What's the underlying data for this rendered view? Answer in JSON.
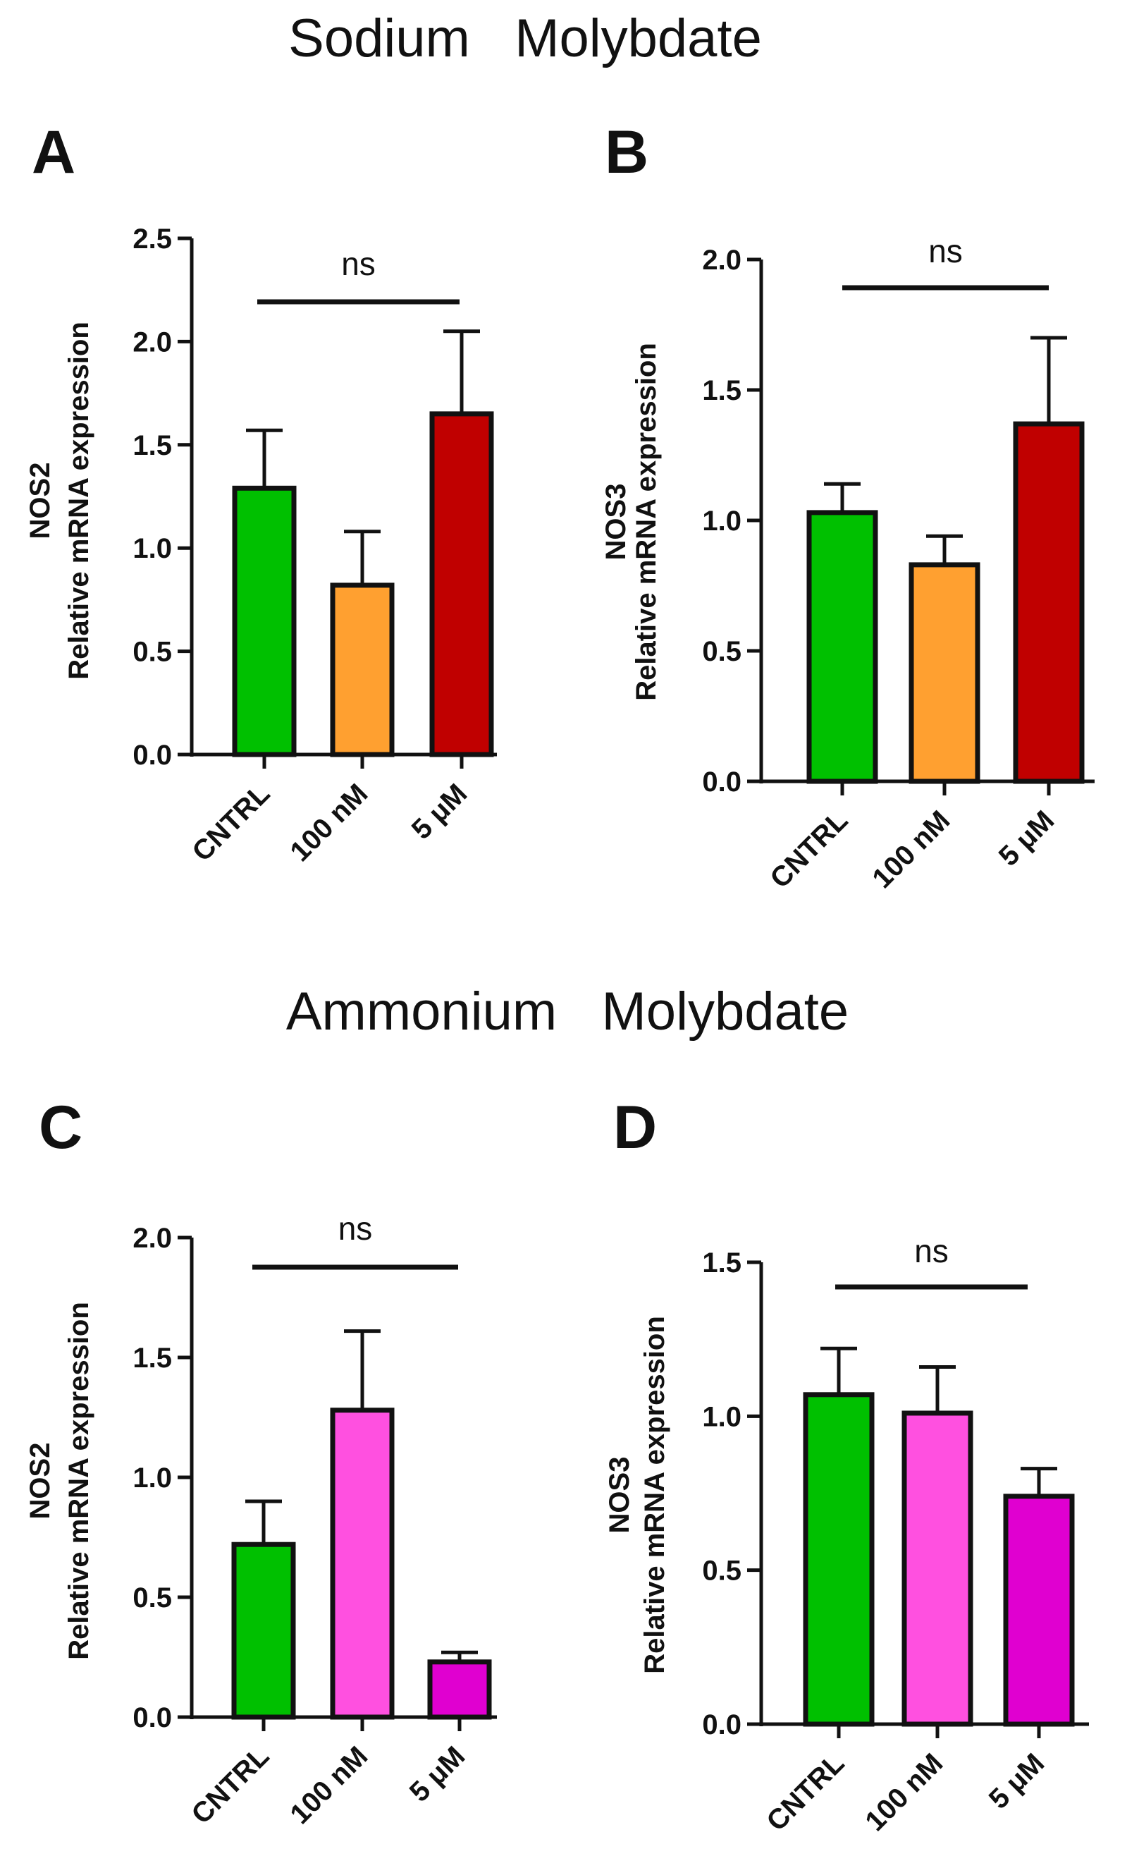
{
  "sections": [
    {
      "title": "Sodium   Molybdate"
    },
    {
      "title": "Ammonium   Molybdate"
    }
  ],
  "chart_data": [
    {
      "panel": "A",
      "type": "bar",
      "title": "Sodium   Molybdate",
      "ylabel_line1": "NOS2",
      "ylabel_line2": "Relative mRNA expression",
      "categories": [
        "CNTRL",
        "100 nM",
        "5 μM"
      ],
      "values": [
        1.29,
        0.82,
        1.65
      ],
      "errors": [
        0.28,
        0.26,
        0.4
      ],
      "colors": [
        "#00c000",
        "#ffa030",
        "#c00000"
      ],
      "ylim": [
        0,
        2.5
      ],
      "yticks": [
        "0.0",
        "0.5",
        "1.0",
        "1.5",
        "2.0",
        "2.5"
      ],
      "significance": "ns"
    },
    {
      "panel": "B",
      "type": "bar",
      "title": "Sodium   Molybdate",
      "ylabel_line1": "NOS3",
      "ylabel_line2": "Relative mRNA expression",
      "categories": [
        "CNTRL",
        "100 nM",
        "5 μM"
      ],
      "values": [
        1.03,
        0.83,
        1.37
      ],
      "errors": [
        0.11,
        0.11,
        0.33
      ],
      "colors": [
        "#00c000",
        "#ffa030",
        "#c00000"
      ],
      "ylim": [
        0,
        2.0
      ],
      "yticks": [
        "0.0",
        "0.5",
        "1.0",
        "1.5",
        "2.0"
      ],
      "significance": "ns"
    },
    {
      "panel": "C",
      "type": "bar",
      "title": "Ammonium   Molybdate",
      "ylabel_line1": "NOS2",
      "ylabel_line2": "Relative mRNA expression",
      "categories": [
        "CNTRL",
        "100 nM",
        "5 μM"
      ],
      "values": [
        0.72,
        1.28,
        0.23
      ],
      "errors": [
        0.18,
        0.33,
        0.04
      ],
      "colors": [
        "#00c000",
        "#ff50e0",
        "#e000d0"
      ],
      "ylim": [
        0,
        2.0
      ],
      "yticks": [
        "0.0",
        "0.5",
        "1.0",
        "1.5",
        "2.0"
      ],
      "significance": "ns"
    },
    {
      "panel": "D",
      "type": "bar",
      "title": "Ammonium   Molybdate",
      "ylabel_line1": "NOS3",
      "ylabel_line2": "Relative mRNA expression",
      "categories": [
        "CNTRL",
        "100 nM",
        "5 μM"
      ],
      "values": [
        1.07,
        1.01,
        0.74
      ],
      "errors": [
        0.15,
        0.15,
        0.09
      ],
      "colors": [
        "#00c000",
        "#ff50e0",
        "#e000d0"
      ],
      "ylim": [
        0,
        1.5
      ],
      "yticks": [
        "0.0",
        "0.5",
        "1.0",
        "1.5"
      ],
      "significance": "ns"
    }
  ]
}
